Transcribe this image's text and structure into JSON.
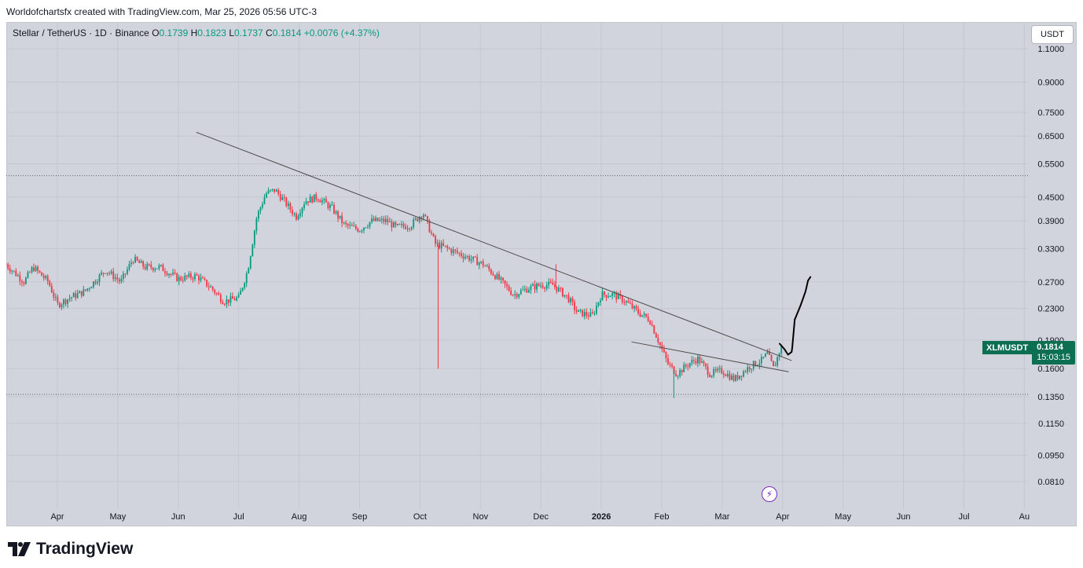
{
  "header": {
    "credit": "Worldofchartsfx created with TradingView.com, Mar 25, 2026 05:56 UTC-3"
  },
  "legend": {
    "title": "Stellar / TetherUS · 1D · Binance",
    "o_label": "O",
    "o_value": "0.1739",
    "h_label": "H",
    "h_value": "0.1823",
    "l_label": "L",
    "l_value": "0.1737",
    "c_label": "C",
    "c_value": "0.1814",
    "change": "+0.0076 (+4.37%)"
  },
  "currency_button": "USDT",
  "price_tag": {
    "symbol": "XLMUSDT",
    "price": "0.1814",
    "countdown": "15:03:15"
  },
  "branding": {
    "logo_text": "TradingView",
    "logo_mark": "17"
  },
  "events": {
    "bolt_glyph": "⚡"
  },
  "colors": {
    "up": "#089981",
    "down": "#f23645",
    "background": "#d1d4dc",
    "line": "#4a4a4a"
  },
  "chart_data": {
    "type": "candlestick",
    "title": "Stellar / TetherUS · 1D · Binance",
    "scale": "log",
    "y_axis_labels": [
      "1.1000",
      "0.9000",
      "0.7500",
      "0.6500",
      "0.5500",
      "0.4500",
      "0.3900",
      "0.3300",
      "0.2700",
      "0.2300",
      "0.1900",
      "0.1600",
      "0.1350",
      "0.1150",
      "0.0950",
      "0.0810"
    ],
    "y_axis_values": [
      1.1,
      0.9,
      0.75,
      0.65,
      0.55,
      0.45,
      0.39,
      0.33,
      0.27,
      0.23,
      0.19,
      0.16,
      0.135,
      0.115,
      0.095,
      0.081
    ],
    "x_axis_labels": [
      {
        "label": "Apr",
        "month": 1
      },
      {
        "label": "May",
        "month": 2
      },
      {
        "label": "Jun",
        "month": 3
      },
      {
        "label": "Jul",
        "month": 4
      },
      {
        "label": "Aug",
        "month": 5
      },
      {
        "label": "Sep",
        "month": 6
      },
      {
        "label": "Oct",
        "month": 7
      },
      {
        "label": "Nov",
        "month": 8
      },
      {
        "label": "Dec",
        "month": 9
      },
      {
        "label": "2026",
        "month": 10,
        "bold": true
      },
      {
        "label": "Feb",
        "month": 11
      },
      {
        "label": "Mar",
        "month": 12
      },
      {
        "label": "Apr",
        "month": 13
      },
      {
        "label": "May",
        "month": 14
      },
      {
        "label": "Jun",
        "month": 15
      },
      {
        "label": "Jul",
        "month": 16
      },
      {
        "label": "Au",
        "month": 17
      }
    ],
    "x_start_month": 0.15,
    "price_path": [
      [
        0.15,
        0.3
      ],
      [
        0.45,
        0.27
      ],
      [
        0.6,
        0.295
      ],
      [
        0.85,
        0.27
      ],
      [
        1.0,
        0.235
      ],
      [
        1.2,
        0.245
      ],
      [
        1.45,
        0.255
      ],
      [
        1.8,
        0.29
      ],
      [
        2.05,
        0.27
      ],
      [
        2.25,
        0.31
      ],
      [
        2.45,
        0.295
      ],
      [
        2.7,
        0.295
      ],
      [
        3.0,
        0.275
      ],
      [
        3.3,
        0.28
      ],
      [
        3.55,
        0.26
      ],
      [
        3.75,
        0.24
      ],
      [
        4.0,
        0.245
      ],
      [
        4.15,
        0.29
      ],
      [
        4.3,
        0.4
      ],
      [
        4.45,
        0.46
      ],
      [
        4.6,
        0.47
      ],
      [
        4.75,
        0.44
      ],
      [
        4.95,
        0.4
      ],
      [
        5.1,
        0.44
      ],
      [
        5.3,
        0.45
      ],
      [
        5.55,
        0.42
      ],
      [
        5.75,
        0.38
      ],
      [
        6.0,
        0.37
      ],
      [
        6.2,
        0.39
      ],
      [
        6.45,
        0.39
      ],
      [
        6.6,
        0.375
      ],
      [
        6.85,
        0.38
      ],
      [
        7.05,
        0.41
      ],
      [
        7.25,
        0.34
      ],
      [
        7.45,
        0.33
      ],
      [
        7.65,
        0.32
      ],
      [
        7.85,
        0.31
      ],
      [
        8.05,
        0.3
      ],
      [
        8.3,
        0.275
      ],
      [
        8.55,
        0.25
      ],
      [
        8.8,
        0.26
      ],
      [
        9.0,
        0.265
      ],
      [
        9.2,
        0.265
      ],
      [
        9.45,
        0.245
      ],
      [
        9.6,
        0.225
      ],
      [
        9.85,
        0.22
      ],
      [
        10.0,
        0.25
      ],
      [
        10.2,
        0.25
      ],
      [
        10.4,
        0.24
      ],
      [
        10.6,
        0.225
      ],
      [
        10.8,
        0.215
      ],
      [
        11.0,
        0.18
      ],
      [
        11.1,
        0.165
      ],
      [
        11.25,
        0.155
      ],
      [
        11.45,
        0.165
      ],
      [
        11.6,
        0.17
      ],
      [
        11.8,
        0.155
      ],
      [
        12.0,
        0.158
      ],
      [
        12.2,
        0.15
      ],
      [
        12.45,
        0.162
      ],
      [
        12.65,
        0.168
      ],
      [
        12.75,
        0.175
      ],
      [
        12.85,
        0.16
      ],
      [
        12.95,
        0.178
      ],
      [
        12.98,
        0.1814
      ]
    ],
    "spikes": [
      {
        "month": 7.3,
        "low": 0.16
      },
      {
        "month": 9.25,
        "high": 0.3
      },
      {
        "month": 11.2,
        "low": 0.134
      }
    ],
    "trendlines": [
      {
        "name": "main-downtrend-line",
        "from": [
          3.3,
          0.665
        ],
        "to": [
          13.15,
          0.168
        ]
      },
      {
        "name": "lower-trendline",
        "from": [
          10.5,
          0.188
        ],
        "to": [
          13.1,
          0.157
        ]
      }
    ],
    "horizontal_levels": [
      0.512,
      0.137
    ],
    "projection_path": [
      [
        12.95,
        0.186
      ],
      [
        13.03,
        0.18
      ],
      [
        13.09,
        0.174
      ],
      [
        13.15,
        0.177
      ],
      [
        13.16,
        0.182
      ],
      [
        13.2,
        0.215
      ],
      [
        13.3,
        0.235
      ],
      [
        13.38,
        0.255
      ],
      [
        13.42,
        0.272
      ],
      [
        13.46,
        0.278
      ]
    ]
  }
}
